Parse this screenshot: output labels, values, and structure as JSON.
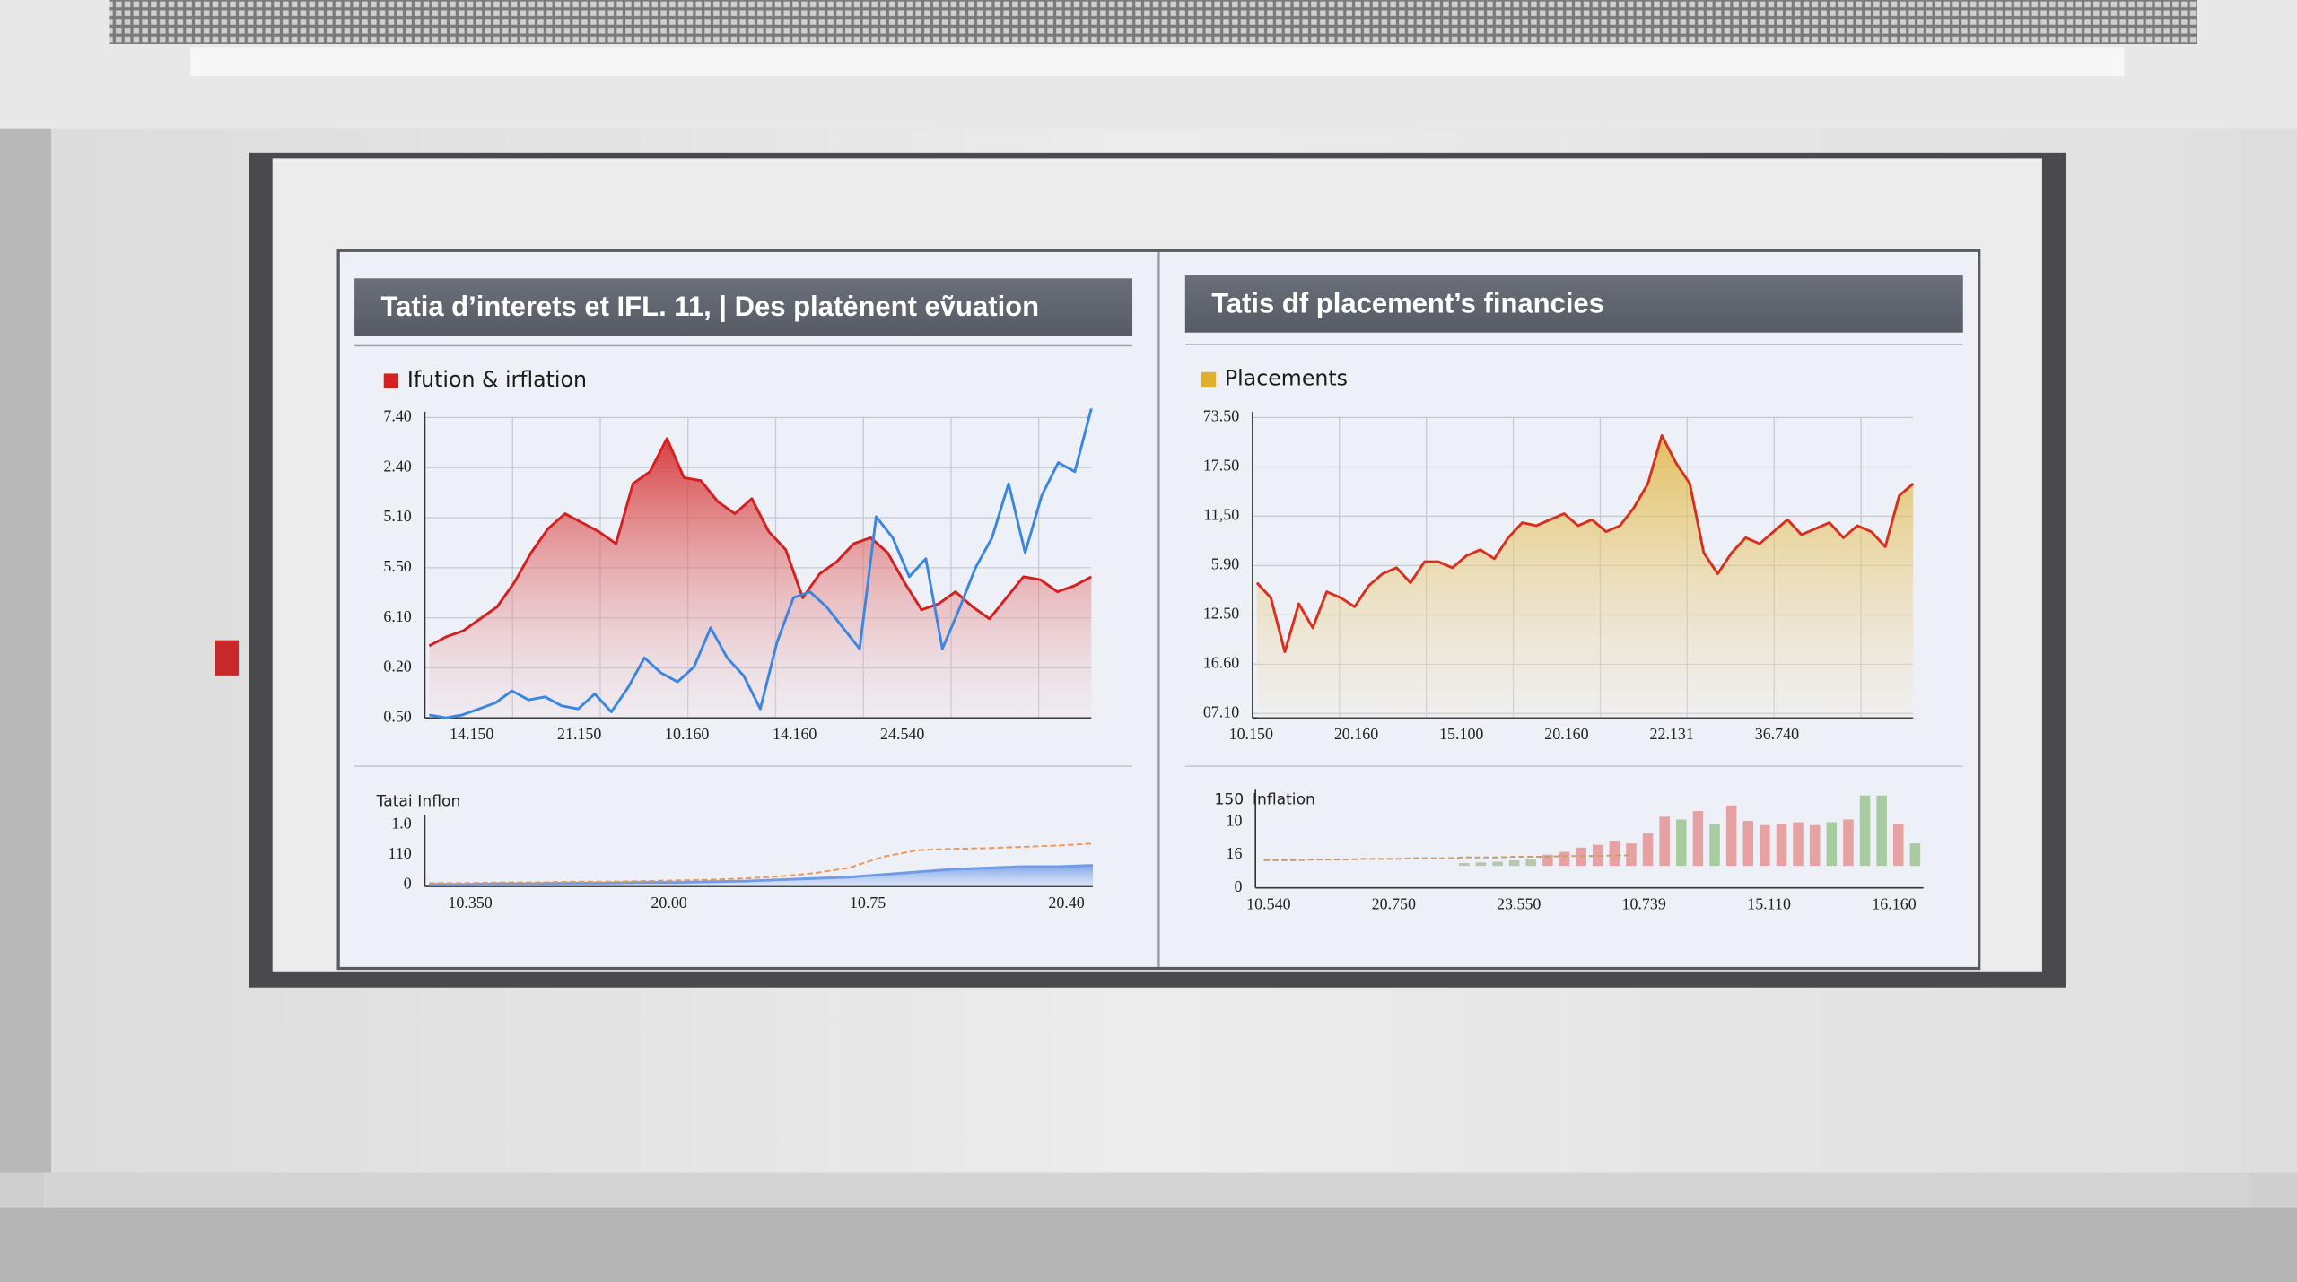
{
  "chart_data": [
    {
      "type": "area",
      "title": "Tatia d’interets et IFL. 11, | Des platėnent eṽuation",
      "grid": true,
      "ylim": [
        0,
        100
      ],
      "y_labels": [
        "7.40",
        "2.40",
        "5.10",
        "5.50",
        "6.10",
        "0.20",
        "0.50"
      ],
      "x_labels": [
        "14.150",
        "21.150",
        "10.160",
        "14.160",
        "24.540"
      ],
      "series": [
        {
          "name": "Ifution & irflation",
          "color": "#d42020",
          "fill": true,
          "values": [
            24,
            27,
            29,
            33,
            37,
            45,
            55,
            63,
            68,
            65,
            62,
            58,
            78,
            82,
            93,
            80,
            79,
            72,
            68,
            73,
            62,
            56,
            40,
            48,
            52,
            58,
            60,
            55,
            45,
            36,
            38,
            42,
            37,
            33,
            40,
            47,
            46,
            42,
            44,
            47
          ]
        },
        {
          "color": "#3b86e0",
          "fill": false,
          "values": [
            1,
            0,
            1,
            3,
            5,
            9,
            6,
            7,
            4,
            3,
            8,
            2,
            10,
            20,
            15,
            12,
            17,
            30,
            20,
            14,
            3,
            25,
            40,
            42,
            37,
            30,
            23,
            67,
            60,
            47,
            53,
            23,
            36,
            50,
            60,
            78,
            55,
            74,
            85,
            82,
            103
          ]
        }
      ]
    },
    {
      "type": "area",
      "title": "Tatai",
      "grid": false,
      "ylim": [
        0,
        100
      ],
      "y_labels": [
        "1.0",
        "110",
        "0"
      ],
      "x_labels": [
        "10.350",
        "20.00",
        "10.75",
        "20.40"
      ],
      "series": [
        {
          "name": "Inflon",
          "color": "#6f9be8",
          "fill": true,
          "values": [
            3,
            3,
            4,
            4,
            5,
            5,
            6,
            6,
            7,
            8,
            10,
            12,
            14,
            18,
            22,
            26,
            28,
            30,
            30,
            32
          ]
        },
        {
          "color": "#e8985a",
          "fill": false,
          "dashed": true,
          "values": [
            5,
            5,
            6,
            6,
            7,
            7,
            8,
            9,
            10,
            12,
            15,
            20,
            28,
            45,
            55,
            57,
            58,
            60,
            62,
            65
          ]
        }
      ]
    },
    {
      "type": "area",
      "title": "Tatis df placement’s financies",
      "grid": true,
      "ylim": [
        0,
        100
      ],
      "y_labels": [
        "73.50",
        "17.50",
        "11,50",
        "5.90",
        "12.50",
        "16.60",
        "07.10"
      ],
      "x_labels": [
        "10.150",
        "20.160",
        "15.100",
        "20.160",
        "22.131",
        "36.740"
      ],
      "series": [
        {
          "name": "Placements",
          "color": "#e0b02c",
          "line_color": "#d8301c",
          "fill": true,
          "values": [
            45,
            40,
            22,
            38,
            30,
            42,
            40,
            37,
            44,
            48,
            50,
            45,
            52,
            52,
            50,
            54,
            56,
            53,
            60,
            65,
            64,
            66,
            68,
            64,
            66,
            62,
            64,
            70,
            78,
            94,
            85,
            78,
            55,
            48,
            55,
            60,
            58,
            62,
            66,
            61,
            63,
            65,
            60,
            64,
            62,
            57,
            74,
            78
          ]
        }
      ]
    },
    {
      "type": "bar",
      "title": "150",
      "grid": false,
      "ylim": [
        0,
        100
      ],
      "y_labels": [
        "10",
        "16",
        "0"
      ],
      "x_labels": [
        "10.540",
        "20.750",
        "23.550",
        "10.739",
        "15.110",
        "16.160"
      ],
      "series": [
        {
          "name": "Inflation",
          "values": [
            null,
            null,
            null,
            null,
            null,
            null,
            null,
            null,
            null,
            null,
            null,
            null,
            4,
            5,
            6,
            8,
            10,
            16,
            20,
            26,
            30,
            36,
            32,
            46,
            70,
            66,
            78,
            60,
            86,
            64,
            58,
            60,
            62,
            58,
            62,
            66,
            100,
            100,
            60,
            32
          ],
          "colors": [
            null,
            null,
            null,
            null,
            null,
            null,
            null,
            null,
            null,
            null,
            null,
            null,
            "#b4c8ac",
            "#b4c8ac",
            "#b4c8ac",
            "#b4c8ac",
            "#b4c8ac",
            "#e6a2a2",
            "#e6a2a2",
            "#e6a2a2",
            "#e6a2a2",
            "#e6a2a2",
            "#e6a2a2",
            "#e6a2a2",
            "#e6a2a2",
            "#a8cca0",
            "#e6a2a2",
            "#a8cca0",
            "#e6a2a2",
            "#e6a2a2",
            "#e6a2a2",
            "#e6a2a2",
            "#e6a2a2",
            "#e6a2a2",
            "#a8cca0",
            "#e6a2a2",
            "#a8cca0",
            "#a8cca0",
            "#e6a2a2",
            "#a8cca0"
          ]
        },
        {
          "type": "line",
          "color": "#c8a070",
          "dashed": true,
          "values": [
            8,
            8,
            8,
            9,
            9,
            9,
            10,
            10,
            10,
            11,
            11,
            11,
            12,
            12,
            12,
            13,
            13,
            13,
            14,
            14,
            14,
            15,
            15,
            null,
            null,
            null,
            null,
            null,
            null,
            null,
            null,
            null,
            null,
            null,
            null,
            null,
            null,
            null,
            null,
            null
          ]
        }
      ]
    }
  ]
}
